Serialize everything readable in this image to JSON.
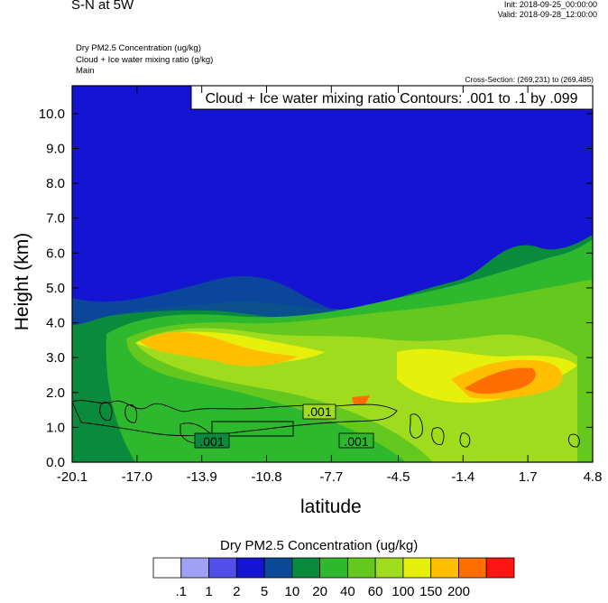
{
  "header": {
    "title": "S-N at 5W",
    "init": "Init: 2018-09-25_00:00:00",
    "valid": "Valid: 2018-09-28_12:00:00",
    "fields": [
      "Dry PM2.5 Concentration   (ug/kg)",
      "Cloud + Ice water mixing ratio   (g/kg)",
      "Main"
    ],
    "cross_section": "Cross-Section: (269,231) to (269,485)"
  },
  "chart_data": {
    "type": "heatmap",
    "title": "Cloud + Ice water mixing ratio Contours: .001 to .1 by .099",
    "xlabel": "latitude",
    "ylabel": "Height (km)",
    "xlim": [
      -20.1,
      4.8
    ],
    "ylim": [
      0.0,
      10.8
    ],
    "x_ticks": [
      "-20.1",
      "-17.0",
      "-13.9",
      "-10.8",
      "-7.7",
      "-4.5",
      "-1.4",
      "1.7",
      "4.8"
    ],
    "y_ticks": [
      "0.0",
      "1.0",
      "2.0",
      "3.0",
      "4.0",
      "5.0",
      "6.0",
      "7.0",
      "8.0",
      "9.0",
      "10.0"
    ],
    "colorbar": {
      "title": "Dry PM2.5 Concentration  (ug/kg)",
      "levels": [
        ".1",
        "1",
        "2",
        "5",
        "10",
        "20",
        "40",
        "60",
        "100",
        "150",
        "200"
      ],
      "colors": [
        "#ffffff",
        "#a0a0f5",
        "#5050e8",
        "#1414d2",
        "#0a4a96",
        "#0a8a3c",
        "#2eb82e",
        "#64c81e",
        "#a0dc1e",
        "#e6f00a",
        "#ffbe00",
        "#ff6e00",
        "#ff1414"
      ]
    },
    "contour_labels": [
      ".001",
      ".001",
      ".001"
    ],
    "bands": [
      {
        "level": "5",
        "color": "#1414d2",
        "y_top": 10.8,
        "y_bottom": 3.9
      },
      {
        "level": "10",
        "color": "#0a4a96",
        "y_top": 4.0,
        "y_bottom": 3.5
      },
      {
        "level": "20",
        "color": "#0a8a3c",
        "y_top": 3.9,
        "y_bottom": 0.0
      },
      {
        "level": "40",
        "color": "#2eb82e",
        "y_top": 3.8,
        "y_bottom": 0.0
      },
      {
        "level": "100",
        "color": "#a0dc1e",
        "y_top": 3.6,
        "y_bottom": 0.0
      },
      {
        "level": "150",
        "color": "#ffbe00",
        "y_top": 3.5,
        "y_bottom": 2.0
      },
      {
        "level": "200",
        "color": "#ff6e00",
        "y_top": 2.5,
        "y_bottom": 1.7
      }
    ]
  }
}
